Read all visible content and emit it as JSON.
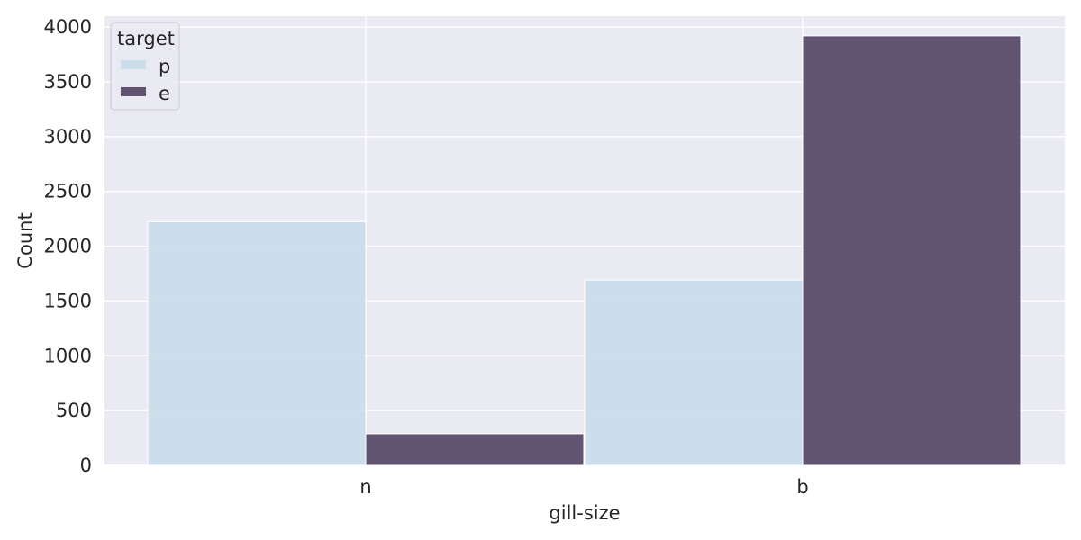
{
  "chart_data": {
    "type": "bar",
    "xlabel": "gill-size",
    "ylabel": "Count",
    "categories": [
      "n",
      "b"
    ],
    "ylim": [
      0,
      4100
    ],
    "yticks": [
      0,
      500,
      1000,
      1500,
      2000,
      2500,
      3000,
      3500,
      4000
    ],
    "grid": true,
    "legend": {
      "title": "target",
      "position": "top-left"
    },
    "series": [
      {
        "name": "p",
        "color": "#c7dcea",
        "values": [
          2224,
          1692
        ]
      },
      {
        "name": "e",
        "color": "#4c3f5e",
        "values": [
          288,
          3920
        ]
      }
    ],
    "background_color": "#eaeaf2",
    "grid_color": "#ffffff"
  }
}
